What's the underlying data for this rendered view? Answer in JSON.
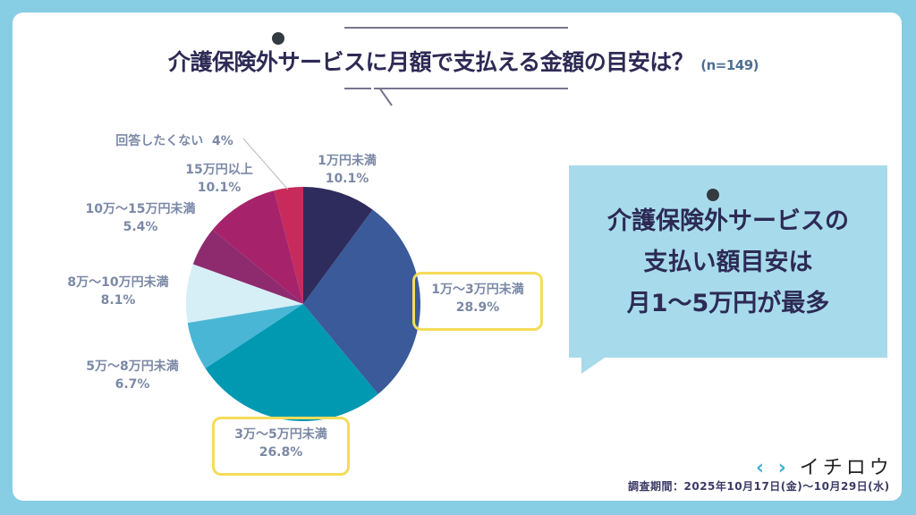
{
  "title": "介護保険外サービスに月額で支払える金額の目安は？",
  "sample_size": "(n=149)",
  "callout": {
    "lines": [
      "介護保険外サービスの",
      "支払い額目安は",
      "月1〜5万円が最多"
    ]
  },
  "logo": {
    "text": "イチロウ",
    "mark": "‹ ›"
  },
  "survey_period": "調査期間：2025年10月17日(金)〜10月29日(水)",
  "chart_data": {
    "type": "pie",
    "start": "top",
    "direction": "clockwise",
    "categories": [
      "1万円未満",
      "1万〜3万円未満",
      "3万〜5万円未満",
      "5万〜8万円未満",
      "8万〜10万円未満",
      "10万〜15万円未満",
      "15万円以上",
      "回答したくない"
    ],
    "values": [
      10.1,
      28.9,
      26.8,
      6.7,
      8.1,
      5.4,
      10.1,
      4
    ],
    "labels": [
      "10.1%",
      "28.9%",
      "26.8%",
      "6.7%",
      "8.1%",
      "5.4%",
      "10.1%",
      "4%"
    ],
    "colors": [
      "#2e2c5c",
      "#3a5a9a",
      "#0099b2",
      "#4ab6d6",
      "#d6eff7",
      "#8e2b6f",
      "#a6236b",
      "#c82a5c"
    ],
    "highlighted": [
      "1万〜3万円未満",
      "3万〜5万円未満"
    ]
  }
}
